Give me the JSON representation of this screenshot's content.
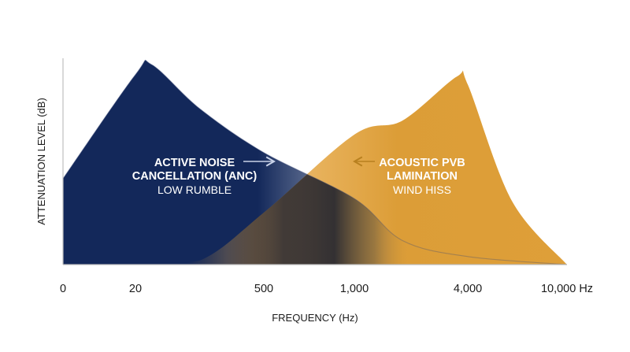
{
  "chart_data": {
    "type": "area",
    "xlabel": "FREQUENCY (Hz)",
    "ylabel": "ATTENUATION LEVEL (dB)",
    "x_scale": "categorical-log",
    "x_ticks": [
      "0",
      "20",
      "500",
      "1,000",
      "4,000",
      "10,000 Hz"
    ],
    "y_ticks_shown": false,
    "grid": false,
    "colors": {
      "anc": "#13285a",
      "pvb": "#de9f39",
      "overlap": "#2b2b35",
      "axis": "#bdbdbd",
      "text": "#1b1b1b"
    },
    "series": [
      {
        "name_lines": [
          "ACTIVE NOISE",
          "CANCELLATION (ANC)"
        ],
        "subtitle": "LOW RUMBLE",
        "arrow": "right",
        "color": "#13285a",
        "points": [
          {
            "x": 0,
            "y": 43
          },
          {
            "x": 20,
            "y": 95
          },
          {
            "x": 30,
            "y": 100
          },
          {
            "x": 100,
            "y": 78
          },
          {
            "x": 500,
            "y": 56
          },
          {
            "x": 1000,
            "y": 33
          },
          {
            "x": 1800,
            "y": 12
          },
          {
            "x": 4000,
            "y": 4
          },
          {
            "x": 10000,
            "y": 0
          }
        ]
      },
      {
        "name_lines": [
          "ACOUSTIC PVB",
          "LAMINATION"
        ],
        "subtitle": "WIND HISS",
        "arrow": "left",
        "color": "#de9f39",
        "points": [
          {
            "x": 20,
            "y": 0
          },
          {
            "x": 100,
            "y": 2
          },
          {
            "x": 500,
            "y": 26
          },
          {
            "x": 1000,
            "y": 65
          },
          {
            "x": 1800,
            "y": 72
          },
          {
            "x": 3500,
            "y": 94
          },
          {
            "x": 4000,
            "y": 90
          },
          {
            "x": 6000,
            "y": 32
          },
          {
            "x": 10000,
            "y": 0
          }
        ]
      }
    ]
  }
}
